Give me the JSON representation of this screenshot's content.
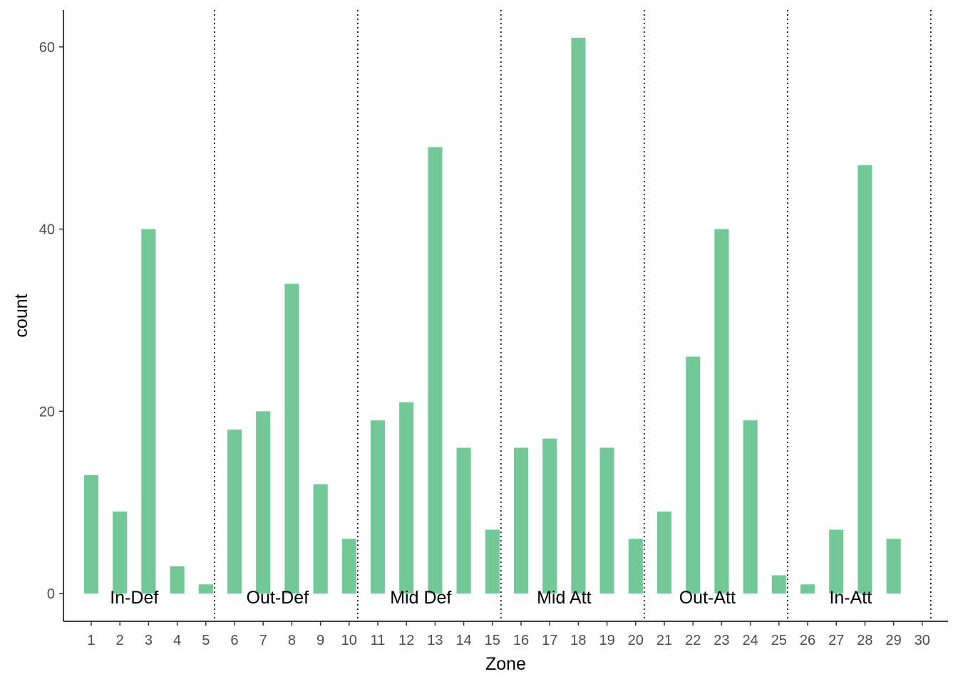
{
  "chart_data": {
    "type": "bar",
    "xlabel": "Zone",
    "ylabel": "count",
    "categories": [
      "1",
      "2",
      "3",
      "4",
      "5",
      "6",
      "7",
      "8",
      "9",
      "10",
      "11",
      "12",
      "13",
      "14",
      "15",
      "16",
      "17",
      "18",
      "19",
      "20",
      "21",
      "22",
      "23",
      "24",
      "25",
      "26",
      "27",
      "28",
      "29",
      "30"
    ],
    "values": [
      13,
      9,
      40,
      3,
      1,
      18,
      20,
      34,
      12,
      6,
      19,
      21,
      49,
      16,
      7,
      16,
      17,
      61,
      16,
      6,
      9,
      26,
      40,
      19,
      2,
      1,
      7,
      47,
      6,
      0
    ],
    "y_ticks": [
      0,
      20,
      40,
      60
    ],
    "ylim": [
      -3.05,
      64.05
    ],
    "xlim": [
      0.03,
      30.9
    ],
    "bar_color": "#72C896",
    "grid": false,
    "dividers": [
      5.3,
      10.3,
      15.3,
      20.3,
      25.3,
      30.3
    ],
    "zone_groups": [
      {
        "label": "In-Def",
        "x": 2.5
      },
      {
        "label": "Out-Def",
        "x": 7.5
      },
      {
        "label": "Mid Def",
        "x": 12.5
      },
      {
        "label": "Mid Att",
        "x": 17.5
      },
      {
        "label": "Out-Att",
        "x": 22.5
      },
      {
        "label": "In-Att",
        "x": 27.5
      }
    ]
  }
}
